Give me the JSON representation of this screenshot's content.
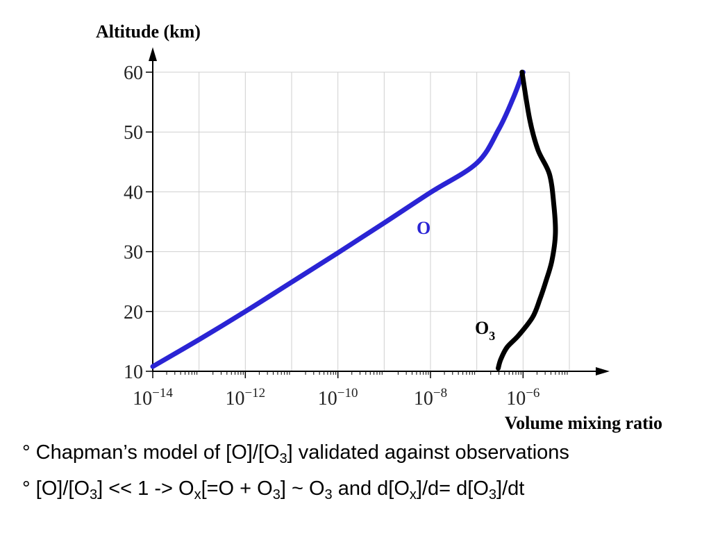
{
  "chart_data": {
    "type": "line",
    "ylabel": "Altitude (km)",
    "xlabel": "Volume mixing ratio",
    "x_scale": "log",
    "xlim": [
      1e-14,
      1e-05
    ],
    "ylim": [
      10,
      60
    ],
    "x_ticks": [
      {
        "value": 1e-14,
        "base": "10",
        "exp": "−14"
      },
      {
        "value": 1e-12,
        "base": "10",
        "exp": "−12"
      },
      {
        "value": 1e-10,
        "base": "10",
        "exp": "−10"
      },
      {
        "value": 1e-08,
        "base": "10",
        "exp": "−8"
      },
      {
        "value": 1e-06,
        "base": "10",
        "exp": "−6"
      }
    ],
    "y_ticks": [
      "10",
      "20",
      "30",
      "40",
      "50",
      "60"
    ],
    "grid": true,
    "series": [
      {
        "name": "O",
        "color": "#2a24d4",
        "x": [
          1e-14,
          1e-13,
          1e-12,
          1e-11,
          1e-10,
          1e-09,
          1e-08,
          1e-07,
          3e-07,
          6e-07,
          1e-06
        ],
        "y": [
          10.8,
          15.3,
          20.0,
          24.9,
          29.8,
          34.8,
          39.9,
          44.8,
          50.5,
          55.5,
          60
        ]
      },
      {
        "name": "O3",
        "color": "#000000",
        "x": [
          2.9e-07,
          3.3e-07,
          4.5e-07,
          8e-07,
          1.6e-06,
          2.3e-06,
          3.1e-06,
          4.2e-06,
          5e-06,
          4.6e-06,
          3.7e-06,
          2.1e-06,
          1.4e-06,
          9.5e-07
        ],
        "y": [
          10.5,
          12,
          14,
          16,
          19,
          22,
          25,
          28.5,
          33,
          38,
          43,
          47,
          52,
          60
        ]
      }
    ],
    "series_labels": {
      "O": "O",
      "O3_base": "O",
      "O3_sub": "3"
    }
  },
  "bullets": [
    {
      "parts": [
        [
          "t",
          "° Chapman’s model of [O]/[O"
        ],
        [
          "sub",
          "3"
        ],
        [
          "t",
          "] validated against observations"
        ]
      ]
    },
    {
      "parts": [
        [
          "t",
          "° [O]/[O"
        ],
        [
          "sub",
          "3"
        ],
        [
          "t",
          "] << 1  -> O"
        ],
        [
          "sub",
          "x"
        ],
        [
          "t",
          "[=O + O"
        ],
        [
          "sub",
          "3"
        ],
        [
          "t",
          "] ~ O"
        ],
        [
          "sub",
          "3"
        ],
        [
          "t",
          " and d[O"
        ],
        [
          "sub",
          "x"
        ],
        [
          "t",
          "]/d= d[O"
        ],
        [
          "sub",
          "3"
        ],
        [
          "t",
          "]/dt"
        ]
      ]
    }
  ]
}
